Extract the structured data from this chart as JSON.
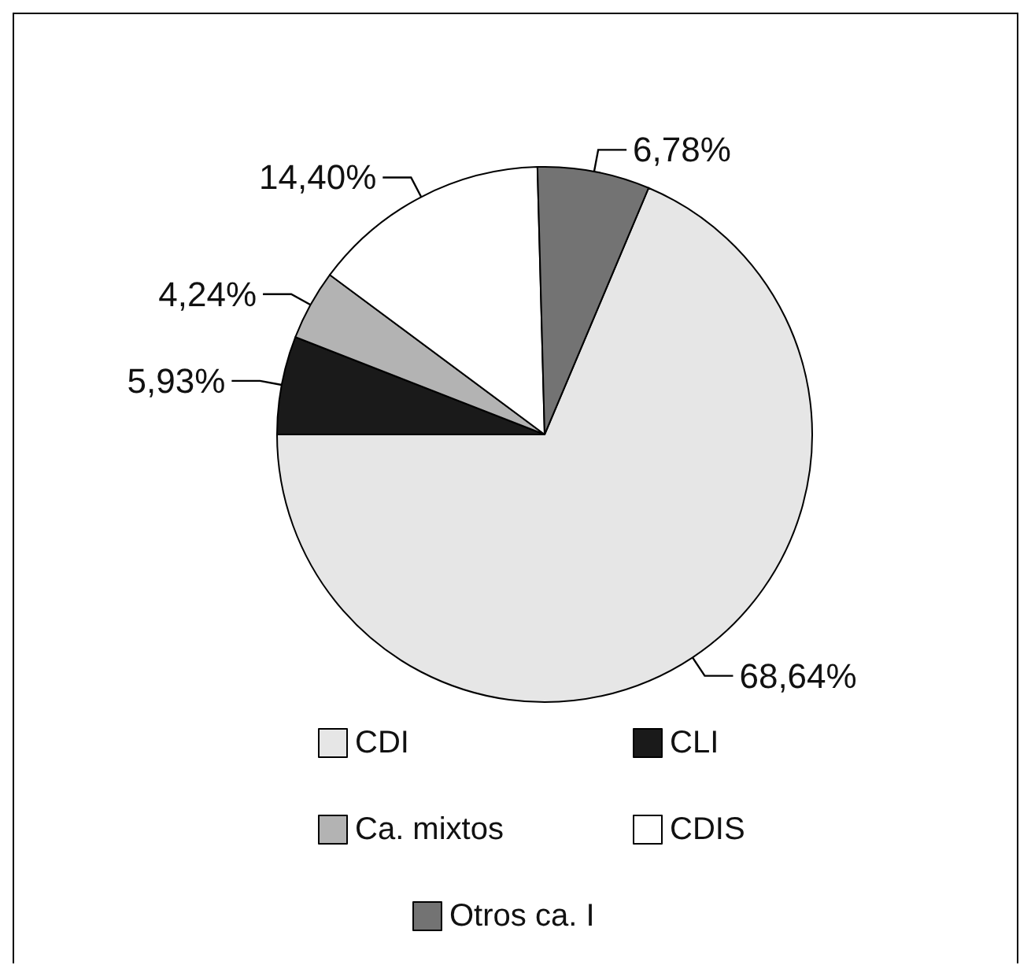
{
  "chart_data": {
    "type": "pie",
    "categories": [
      "CDI",
      "CLI",
      "Ca. mixtos",
      "CDIS",
      "Otros ca. I"
    ],
    "values": [
      68.64,
      5.93,
      4.24,
      14.4,
      6.78
    ],
    "colors": [
      "#e6e6e6",
      "#1a1a1a",
      "#b3b3b3",
      "#ffffff",
      "#737373"
    ],
    "value_labels": [
      "68,64%",
      "5,93%",
      "4,24%",
      "14,40%",
      "6,78%"
    ],
    "legend": "bottom"
  }
}
